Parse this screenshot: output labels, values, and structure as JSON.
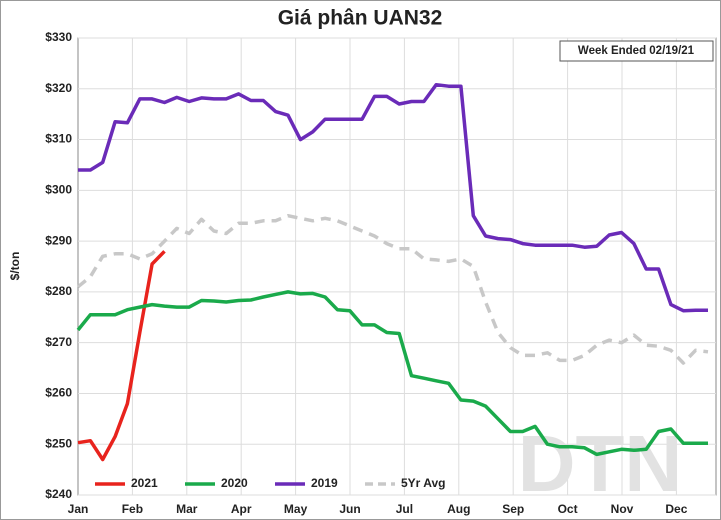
{
  "chart_data": {
    "type": "line",
    "title": "Giá phân UAN32",
    "annotation": "Week Ended 02/19/21",
    "ylabel": "$/ton",
    "watermark": "DTN",
    "xticks": [
      "Jan",
      "Feb",
      "Mar",
      "Apr",
      "May",
      "Jun",
      "Jul",
      "Aug",
      "Sep",
      "Oct",
      "Nov",
      "Dec"
    ],
    "ylim": [
      240,
      330
    ],
    "yticks": [
      {
        "value": 240,
        "label": "$240"
      },
      {
        "value": 250,
        "label": "$250"
      },
      {
        "value": 260,
        "label": "$260"
      },
      {
        "value": 270,
        "label": "$270"
      },
      {
        "value": 280,
        "label": "$280"
      },
      {
        "value": 290,
        "label": "$290"
      },
      {
        "value": 300,
        "label": "$300"
      },
      {
        "value": 310,
        "label": "$310"
      },
      {
        "value": 320,
        "label": "$320"
      },
      {
        "value": 330,
        "label": "$330"
      }
    ],
    "grid": true,
    "legend": "bottom-left",
    "series": [
      {
        "name": "2021",
        "color": "#e8231d",
        "dash": false,
        "values": [
          250.3,
          250.7,
          247,
          251.5,
          258,
          272,
          285.5,
          288,
          null,
          null,
          null,
          null,
          null,
          null,
          null,
          null,
          null,
          null,
          null,
          null,
          null,
          null,
          null,
          null,
          null,
          null,
          null,
          null,
          null,
          null,
          null,
          null,
          null,
          null,
          null,
          null,
          null,
          null,
          null,
          null,
          null,
          null,
          null,
          null,
          null,
          null,
          null,
          null,
          null,
          null,
          null,
          null
        ]
      },
      {
        "name": "2020",
        "color": "#1aaa4b",
        "dash": false,
        "values": [
          272.5,
          275.5,
          275.5,
          275.5,
          276.5,
          277,
          277.5,
          277.2,
          277,
          277,
          278.3,
          278.2,
          278,
          278.3,
          278.4,
          279,
          279.5,
          280,
          279.6,
          279.7,
          279,
          276.5,
          276.3,
          273.5,
          273.5,
          272,
          271.8,
          263.5,
          263,
          262.5,
          262,
          258.7,
          258.5,
          257.5,
          255,
          252.5,
          252.5,
          253.5,
          250,
          249.5,
          249.5,
          249.3,
          248,
          248.5,
          249,
          248.8,
          249,
          252.5,
          253,
          250.2,
          250.2,
          250.2
        ]
      },
      {
        "name": "2019",
        "color": "#6a2bb8",
        "dash": false,
        "values": [
          304,
          304,
          305.5,
          313.5,
          313.3,
          318,
          318,
          317.3,
          318.3,
          317.5,
          318.2,
          318,
          318,
          319,
          317.7,
          317.7,
          315.5,
          314.8,
          310,
          311.5,
          314,
          314,
          314,
          314,
          318.5,
          318.5,
          317,
          317.5,
          317.5,
          320.8,
          320.5,
          320.5,
          295,
          291,
          290.5,
          290.3,
          289.5,
          289.2,
          289.2,
          289.2,
          289.2,
          288.8,
          289,
          291.2,
          291.7,
          289.5,
          284.5,
          284.5,
          277.5,
          276.3,
          276.4,
          276.4
        ]
      },
      {
        "name": "5Yr Avg",
        "color": "#c8c8c8",
        "dash": true,
        "values": [
          281,
          283,
          287,
          287.5,
          287.5,
          286.5,
          287.5,
          290,
          292.5,
          291.5,
          294.3,
          292,
          291.5,
          293.5,
          293.5,
          294,
          294,
          295,
          294.5,
          294,
          294.5,
          294,
          293,
          292,
          291,
          289.5,
          288.5,
          288.5,
          286.5,
          286.3,
          286,
          286.5,
          285,
          278,
          272,
          269,
          267.5,
          267.5,
          268,
          266.5,
          266.5,
          267.5,
          269.5,
          270.5,
          270,
          271.5,
          269.5,
          269.3,
          268.5,
          266,
          268.5,
          268.2
        ]
      }
    ]
  }
}
